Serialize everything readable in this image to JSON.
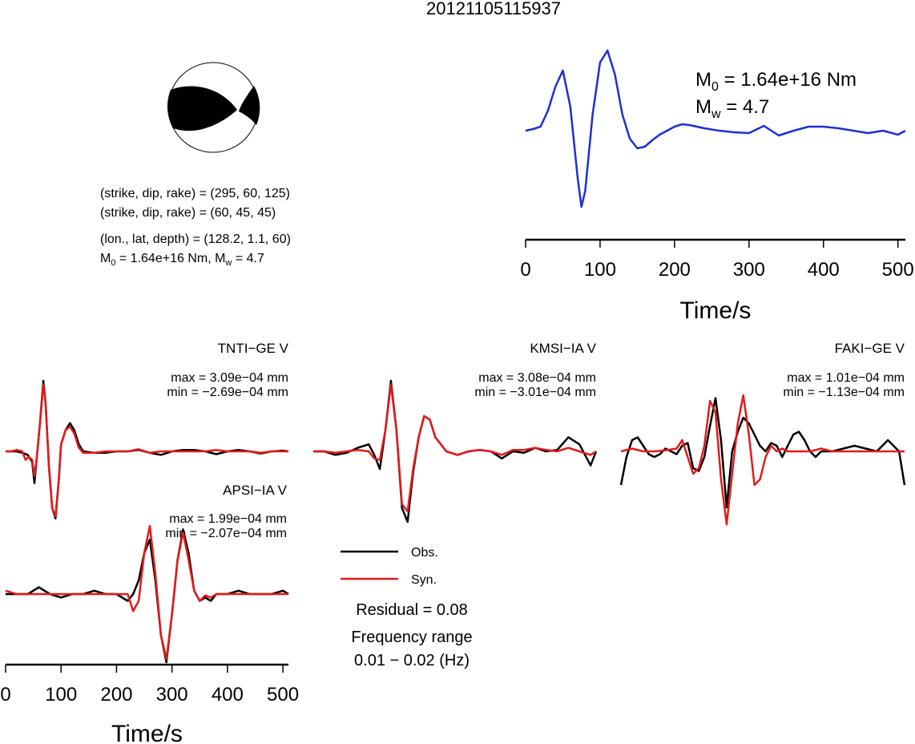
{
  "title": "20121105115937",
  "colors": {
    "stf": "#1f2fd0",
    "obs": "#000000",
    "syn": "#e31a1c",
    "beach_fill": "#000000"
  },
  "mechanism": {
    "line1": "(strike, dip, rake) = (295, 60, 125)",
    "line2": "(strike, dip, rake) = (60, 45, 45)",
    "line3": "(lon., lat, depth) = (128.2, 1.1, 60)",
    "m0_text": "M",
    "m0_sub": "0",
    "m0_value": " = 1.64e+16 Nm, M",
    "mw_sub": "w",
    "mw_value": " = 4.7"
  },
  "stf_annot": {
    "m0_label": "M",
    "m0_sub": "0",
    "m0_value": " = 1.64e+16 Nm",
    "mw_label": "M",
    "mw_sub": "w",
    "mw_value": " = 4.7"
  },
  "legend": {
    "obs": "Obs.",
    "syn": "Syn.",
    "residual": "Residual = 0.08",
    "freq_label": "Frequency range",
    "freq_value": "0.01 − 0.02 (Hz)"
  },
  "chart_data": [
    {
      "type": "line",
      "panel": "source-time-function",
      "xlabel": "Time/s",
      "xlim": [
        0,
        510
      ],
      "x_ticks": [
        0,
        100,
        200,
        300,
        400,
        500
      ],
      "series": [
        {
          "x": [
            0,
            10,
            20,
            30,
            40,
            50,
            60,
            70,
            75,
            80,
            90,
            100,
            110,
            120,
            130,
            140,
            150,
            160,
            170,
            180,
            190,
            200,
            210,
            220,
            240,
            260,
            280,
            300,
            320,
            340,
            360,
            380,
            400,
            420,
            440,
            460,
            480,
            500,
            510
          ],
          "y": [
            0.0,
            0.02,
            0.05,
            0.25,
            0.55,
            0.75,
            0.3,
            -0.6,
            -0.95,
            -0.75,
            0.2,
            0.85,
            1.0,
            0.7,
            0.2,
            -0.1,
            -0.22,
            -0.2,
            -0.12,
            -0.05,
            0.0,
            0.05,
            0.08,
            0.07,
            0.03,
            0.0,
            -0.02,
            -0.03,
            0.06,
            -0.06,
            0.0,
            0.05,
            0.05,
            0.03,
            0.0,
            -0.03,
            0.0,
            -0.05,
            0.0
          ]
        }
      ]
    },
    {
      "type": "line",
      "panel": "waveform",
      "title": "TNTI−GE V",
      "max_text": "max = 3.09e−04 mm",
      "min_text": "min = −2.69e−04 mm",
      "series": [
        {
          "name": "Obs.",
          "x": [
            0,
            10,
            20,
            30,
            40,
            48,
            52,
            56,
            62,
            68,
            72,
            78,
            84,
            90,
            96,
            100,
            108,
            116,
            124,
            132,
            140,
            160,
            180,
            200,
            220,
            240,
            260,
            280,
            300,
            320,
            340,
            360,
            380,
            400,
            420,
            440,
            460,
            480,
            500,
            510
          ],
          "y": [
            0.0,
            0.0,
            0.0,
            -0.02,
            -0.05,
            -0.15,
            -0.45,
            -0.1,
            0.4,
            1.0,
            0.7,
            -0.2,
            -0.8,
            -0.95,
            -0.4,
            0.1,
            0.3,
            0.4,
            0.3,
            0.1,
            0.0,
            -0.02,
            -0.02,
            0.0,
            0.0,
            0.02,
            -0.02,
            -0.05,
            0.0,
            0.02,
            0.02,
            0.0,
            -0.04,
            0.0,
            0.02,
            0.0,
            -0.03,
            0.0,
            0.01,
            0.0
          ]
        },
        {
          "name": "Syn.",
          "x": [
            0,
            10,
            20,
            30,
            36,
            42,
            48,
            52,
            56,
            62,
            68,
            72,
            78,
            84,
            90,
            96,
            100,
            108,
            116,
            124,
            132,
            140,
            160,
            180,
            200,
            220,
            240,
            260,
            280,
            300,
            320,
            340,
            360,
            380,
            400,
            420,
            440,
            460,
            480,
            500,
            510
          ],
          "y": [
            0.0,
            0.0,
            0.02,
            0.0,
            -0.12,
            -0.08,
            -0.12,
            -0.35,
            -0.1,
            0.4,
            0.95,
            0.7,
            -0.2,
            -0.8,
            -0.92,
            -0.4,
            0.1,
            0.3,
            0.35,
            0.25,
            0.05,
            -0.02,
            -0.02,
            0.0,
            0.0,
            0.0,
            0.03,
            -0.02,
            0.0,
            0.0,
            0.0,
            0.0,
            0.0,
            0.02,
            0.0,
            0.0,
            0.0,
            -0.02,
            0.0,
            0.0,
            0.0
          ]
        }
      ]
    },
    {
      "type": "line",
      "panel": "waveform",
      "title": "KMSI−IA V",
      "max_text": "max = 3.08e−04 mm",
      "min_text": "min = −3.01e−04 mm",
      "series": [
        {
          "name": "Obs.",
          "x": [
            0,
            20,
            40,
            60,
            80,
            100,
            110,
            120,
            130,
            140,
            150,
            160,
            170,
            180,
            190,
            200,
            210,
            220,
            240,
            260,
            280,
            300,
            320,
            340,
            360,
            380,
            400,
            420,
            440,
            460,
            480,
            500,
            510
          ],
          "y": [
            0.0,
            0.0,
            -0.05,
            -0.02,
            0.05,
            0.1,
            -0.05,
            -0.25,
            0.3,
            1.0,
            0.3,
            -0.8,
            -1.0,
            -0.3,
            0.2,
            0.5,
            0.45,
            0.2,
            0.0,
            -0.05,
            0.0,
            0.02,
            0.0,
            -0.1,
            0.0,
            -0.02,
            0.05,
            0.0,
            0.02,
            0.2,
            0.1,
            -0.2,
            0.0
          ]
        },
        {
          "name": "Syn.",
          "x": [
            0,
            20,
            40,
            60,
            80,
            100,
            110,
            120,
            130,
            140,
            150,
            160,
            170,
            180,
            190,
            200,
            210,
            220,
            240,
            260,
            280,
            300,
            320,
            340,
            360,
            380,
            400,
            420,
            440,
            460,
            480,
            500,
            510
          ],
          "y": [
            0.0,
            0.0,
            -0.02,
            0.0,
            0.02,
            0.0,
            -0.1,
            -0.12,
            0.3,
            0.95,
            0.3,
            -0.75,
            -0.85,
            -0.25,
            0.2,
            0.5,
            0.45,
            0.2,
            0.0,
            -0.05,
            0.0,
            0.02,
            0.0,
            -0.05,
            0.02,
            0.02,
            0.05,
            0.02,
            0.0,
            0.05,
            0.0,
            -0.05,
            0.0
          ]
        }
      ]
    },
    {
      "type": "line",
      "panel": "waveform",
      "title": "FAKI−GE V",
      "max_text": "max = 1.01e−04 mm",
      "min_text": "min = −1.13e−04 mm",
      "series": [
        {
          "name": "Obs.",
          "x": [
            0,
            10,
            20,
            30,
            40,
            50,
            60,
            70,
            80,
            90,
            100,
            110,
            120,
            130,
            140,
            150,
            160,
            170,
            180,
            190,
            200,
            210,
            220,
            230,
            240,
            250,
            260,
            270,
            280,
            290,
            300,
            310,
            320,
            330,
            340,
            350,
            360,
            380,
            400,
            420,
            440,
            460,
            480,
            500,
            510
          ],
          "y": [
            -0.6,
            -0.1,
            0.2,
            0.25,
            0.1,
            -0.05,
            -0.1,
            -0.05,
            0.05,
            0.0,
            -0.05,
            0.1,
            0.15,
            -0.3,
            -0.35,
            -0.1,
            0.45,
            0.95,
            0.2,
            -1.0,
            0.0,
            0.35,
            0.6,
            0.5,
            0.3,
            0.1,
            0.0,
            0.15,
            0.1,
            -0.1,
            0.1,
            0.3,
            0.35,
            0.2,
            0.0,
            -0.1,
            0.0,
            0.0,
            0.05,
            0.1,
            0.05,
            0.0,
            0.2,
            0.0,
            -0.6
          ]
        },
        {
          "name": "Syn.",
          "x": [
            0,
            20,
            40,
            60,
            80,
            100,
            110,
            120,
            130,
            140,
            150,
            160,
            170,
            180,
            190,
            200,
            210,
            220,
            230,
            240,
            250,
            260,
            270,
            280,
            290,
            300,
            320,
            340,
            360,
            380,
            400,
            420,
            440,
            460,
            480,
            500,
            510
          ],
          "y": [
            0.0,
            0.05,
            0.0,
            0.0,
            0.02,
            0.05,
            0.2,
            -0.1,
            -0.4,
            -0.3,
            0.1,
            0.9,
            0.7,
            -0.5,
            -1.3,
            -0.4,
            0.5,
            1.0,
            0.3,
            -0.6,
            -0.5,
            -0.1,
            0.1,
            0.0,
            0.05,
            0.0,
            0.0,
            0.0,
            0.05,
            0.0,
            0.0,
            0.0,
            0.0,
            0.0,
            0.0,
            0.0,
            0.0
          ]
        }
      ]
    },
    {
      "type": "line",
      "panel": "waveform",
      "title": "APSI−IA V",
      "xlabel": "Time/s",
      "xlim": [
        0,
        510
      ],
      "x_ticks": [
        0,
        100,
        200,
        300,
        400,
        500
      ],
      "max_text": "max = 1.99e−04 mm",
      "min_text": "min = −2.07e−04 mm",
      "series": [
        {
          "name": "Obs.",
          "x": [
            0,
            20,
            40,
            60,
            80,
            100,
            120,
            140,
            160,
            180,
            200,
            220,
            230,
            240,
            250,
            260,
            270,
            280,
            290,
            300,
            310,
            320,
            330,
            340,
            350,
            360,
            370,
            380,
            400,
            420,
            440,
            460,
            480,
            500,
            510
          ],
          "y": [
            0.0,
            0.0,
            0.0,
            0.1,
            0.0,
            -0.05,
            0.0,
            0.0,
            0.05,
            0.0,
            0.0,
            -0.1,
            0.0,
            0.2,
            0.6,
            0.8,
            0.2,
            -0.6,
            -1.0,
            -0.3,
            0.5,
            0.95,
            0.6,
            0.05,
            -0.1,
            -0.05,
            -0.1,
            0.0,
            0.0,
            0.05,
            0.0,
            0.0,
            0.0,
            0.05,
            0.0
          ]
        },
        {
          "name": "Syn.",
          "x": [
            0,
            20,
            40,
            60,
            80,
            100,
            120,
            140,
            160,
            180,
            200,
            220,
            230,
            240,
            250,
            260,
            270,
            280,
            290,
            300,
            310,
            320,
            330,
            340,
            350,
            360,
            370,
            380,
            400,
            420,
            440,
            460,
            480,
            500,
            510
          ],
          "y": [
            0.05,
            0.0,
            0.0,
            0.0,
            0.0,
            0.0,
            0.0,
            0.0,
            0.0,
            0.0,
            0.0,
            0.0,
            -0.25,
            -0.1,
            0.6,
            1.0,
            0.3,
            -0.6,
            -0.95,
            -0.3,
            0.5,
            0.9,
            0.5,
            0.05,
            -0.1,
            -0.02,
            -0.05,
            0.0,
            0.0,
            0.0,
            0.0,
            0.0,
            0.0,
            0.0,
            0.0
          ]
        }
      ]
    }
  ]
}
